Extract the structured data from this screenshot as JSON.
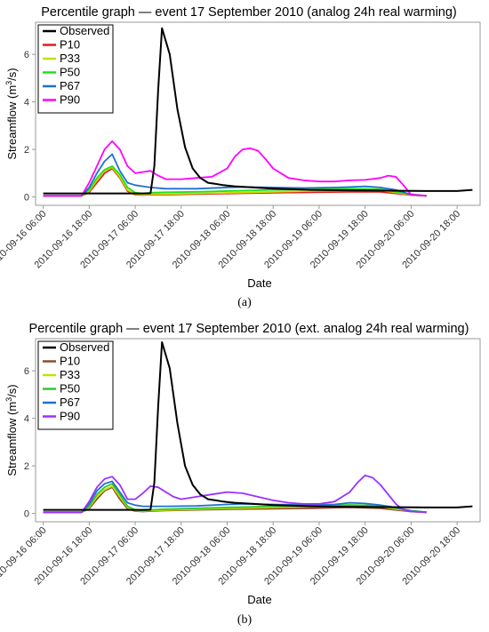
{
  "captions": [
    "(a)",
    "(b)"
  ],
  "chart_data": [
    {
      "type": "line",
      "title": "Percentile graph — event 17 September 2010 (analog 24h real warming)",
      "xlabel": "Date",
      "ylabel_main": "Streamflow (m",
      "ylabel_sup": "3",
      "ylabel_tail": "/s)",
      "x_tick_labels": [
        "2010-09-16 06:00",
        "2010-09-16 18:00",
        "2010-09-17 06:00",
        "2010-09-17 18:00",
        "2010-09-18 06:00",
        "2010-09-18 18:00",
        "2010-09-19 06:00",
        "2010-09-19 18:00",
        "2010-09-20 06:00",
        "2010-09-20 18:00"
      ],
      "x_range_hours": [
        -2,
        114
      ],
      "y_ticks": [
        0,
        2,
        4,
        6
      ],
      "ylim": [
        -0.35,
        7.35
      ],
      "grid": false,
      "legend_position": "top-left",
      "series": [
        {
          "name": "Observed",
          "color": "#000000",
          "x": [
            0,
            26,
            28,
            29,
            30,
            31,
            33,
            35,
            37,
            39,
            41,
            43,
            45,
            47,
            50,
            55,
            60,
            70,
            80,
            100,
            108,
            112
          ],
          "y": [
            0.15,
            0.15,
            0.16,
            1.3,
            4.5,
            7.1,
            6.0,
            3.7,
            2.1,
            1.2,
            0.8,
            0.6,
            0.55,
            0.5,
            0.45,
            0.4,
            0.35,
            0.3,
            0.28,
            0.25,
            0.25,
            0.3
          ]
        },
        {
          "name": "P10",
          "color": "#e41a1c",
          "x": [
            0,
            10,
            12,
            14,
            16,
            18,
            20,
            22,
            24,
            26,
            28,
            32,
            40,
            50,
            60,
            70,
            80,
            88,
            96,
            100
          ],
          "y": [
            0.05,
            0.05,
            0.2,
            0.6,
            1.0,
            1.2,
            0.8,
            0.25,
            0.1,
            0.08,
            0.1,
            0.1,
            0.12,
            0.15,
            0.18,
            0.2,
            0.22,
            0.22,
            0.08,
            0.05
          ]
        },
        {
          "name": "P33",
          "color": "#c8e000",
          "x": [
            0,
            10,
            12,
            14,
            16,
            18,
            20,
            22,
            24,
            26,
            28,
            32,
            40,
            50,
            60,
            70,
            80,
            88,
            96,
            100
          ],
          "y": [
            0.05,
            0.05,
            0.25,
            0.7,
            1.1,
            1.25,
            0.85,
            0.3,
            0.12,
            0.1,
            0.12,
            0.13,
            0.15,
            0.18,
            0.22,
            0.25,
            0.28,
            0.28,
            0.1,
            0.05
          ]
        },
        {
          "name": "P50",
          "color": "#1ee01e",
          "x": [
            0,
            10,
            12,
            14,
            16,
            18,
            20,
            22,
            24,
            26,
            28,
            32,
            40,
            50,
            60,
            70,
            80,
            88,
            96,
            100
          ],
          "y": [
            0.05,
            0.05,
            0.3,
            0.8,
            1.15,
            1.3,
            0.95,
            0.4,
            0.18,
            0.15,
            0.18,
            0.2,
            0.22,
            0.26,
            0.3,
            0.32,
            0.35,
            0.33,
            0.12,
            0.05
          ]
        },
        {
          "name": "P67",
          "color": "#1f6fd1",
          "x": [
            0,
            10,
            12,
            14,
            16,
            18,
            20,
            22,
            24,
            26,
            28,
            32,
            40,
            48,
            52,
            60,
            68,
            76,
            80,
            84,
            88,
            92,
            96,
            100
          ],
          "y": [
            0.05,
            0.05,
            0.4,
            1.0,
            1.5,
            1.8,
            1.1,
            0.6,
            0.5,
            0.45,
            0.4,
            0.35,
            0.35,
            0.4,
            0.42,
            0.4,
            0.38,
            0.4,
            0.42,
            0.45,
            0.4,
            0.3,
            0.1,
            0.05
          ]
        },
        {
          "name": "P90",
          "color": "#ff00ff",
          "x": [
            0,
            10,
            12,
            14,
            16,
            18,
            20,
            22,
            24,
            26,
            28,
            30,
            32,
            36,
            40,
            44,
            48,
            50,
            52,
            54,
            56,
            58,
            60,
            64,
            68,
            72,
            76,
            80,
            84,
            88,
            90,
            92,
            94,
            96,
            100
          ],
          "y": [
            0.05,
            0.05,
            0.6,
            1.3,
            2.0,
            2.35,
            2.0,
            1.3,
            1.0,
            1.05,
            1.1,
            0.9,
            0.75,
            0.75,
            0.8,
            0.85,
            1.2,
            1.7,
            2.0,
            2.05,
            1.95,
            1.6,
            1.2,
            0.8,
            0.7,
            0.65,
            0.65,
            0.7,
            0.72,
            0.8,
            0.9,
            0.85,
            0.5,
            0.1,
            0.05
          ]
        }
      ]
    },
    {
      "type": "line",
      "title": "Percentile graph — event 17 September 2010 (ext. analog 24h real warming)",
      "xlabel": "Date",
      "ylabel_main": "Streamflow (m",
      "ylabel_sup": "3",
      "ylabel_tail": "/s)",
      "x_tick_labels": [
        "2010-09-16 06:00",
        "2010-09-16 18:00",
        "2010-09-17 06:00",
        "2010-09-17 18:00",
        "2010-09-18 06:00",
        "2010-09-18 18:00",
        "2010-09-19 06:00",
        "2010-09-19 18:00",
        "2010-09-20 06:00",
        "2010-09-20 18:00"
      ],
      "x_range_hours": [
        -2,
        114
      ],
      "y_ticks": [
        0,
        2,
        4,
        6
      ],
      "ylim": [
        -0.35,
        7.35
      ],
      "grid": false,
      "legend_position": "top-left",
      "series": [
        {
          "name": "Observed",
          "color": "#000000",
          "x": [
            0,
            26,
            28,
            29,
            30,
            31,
            33,
            35,
            37,
            39,
            41,
            43,
            45,
            47,
            50,
            55,
            60,
            70,
            80,
            100,
            108,
            112
          ],
          "y": [
            0.15,
            0.15,
            0.16,
            1.3,
            4.5,
            7.2,
            6.1,
            3.8,
            2.0,
            1.2,
            0.8,
            0.6,
            0.55,
            0.5,
            0.45,
            0.4,
            0.35,
            0.3,
            0.28,
            0.25,
            0.25,
            0.3
          ]
        },
        {
          "name": "P10",
          "color": "#8c4a2f",
          "x": [
            0,
            10,
            12,
            14,
            16,
            18,
            20,
            22,
            24,
            26,
            28,
            32,
            40,
            50,
            60,
            70,
            80,
            88,
            96,
            100
          ],
          "y": [
            0.05,
            0.05,
            0.2,
            0.6,
            0.95,
            1.1,
            0.6,
            0.2,
            0.1,
            0.08,
            0.1,
            0.12,
            0.15,
            0.18,
            0.2,
            0.22,
            0.25,
            0.22,
            0.08,
            0.05
          ]
        },
        {
          "name": "P33",
          "color": "#c8e000",
          "x": [
            0,
            10,
            12,
            14,
            16,
            18,
            20,
            22,
            24,
            26,
            28,
            32,
            40,
            50,
            60,
            70,
            80,
            88,
            96,
            100
          ],
          "y": [
            0.05,
            0.05,
            0.25,
            0.7,
            1.0,
            1.15,
            0.7,
            0.25,
            0.12,
            0.1,
            0.12,
            0.14,
            0.18,
            0.22,
            0.25,
            0.28,
            0.3,
            0.28,
            0.1,
            0.05
          ]
        },
        {
          "name": "P50",
          "color": "#32c832",
          "x": [
            0,
            10,
            12,
            14,
            16,
            18,
            20,
            22,
            24,
            26,
            28,
            32,
            40,
            50,
            60,
            70,
            80,
            88,
            96,
            100
          ],
          "y": [
            0.05,
            0.05,
            0.3,
            0.8,
            1.1,
            1.25,
            0.8,
            0.3,
            0.15,
            0.12,
            0.15,
            0.18,
            0.22,
            0.26,
            0.3,
            0.32,
            0.36,
            0.33,
            0.12,
            0.05
          ]
        },
        {
          "name": "P67",
          "color": "#1f6fd1",
          "x": [
            0,
            10,
            12,
            14,
            16,
            18,
            20,
            22,
            24,
            26,
            28,
            32,
            40,
            48,
            52,
            60,
            68,
            76,
            80,
            84,
            88,
            92,
            96,
            100
          ],
          "y": [
            0.05,
            0.05,
            0.4,
            0.95,
            1.25,
            1.35,
            0.9,
            0.45,
            0.35,
            0.3,
            0.3,
            0.3,
            0.32,
            0.38,
            0.4,
            0.38,
            0.36,
            0.38,
            0.45,
            0.42,
            0.35,
            0.25,
            0.1,
            0.05
          ]
        },
        {
          "name": "P90",
          "color": "#9b30ff",
          "x": [
            0,
            10,
            12,
            14,
            16,
            18,
            20,
            22,
            24,
            26,
            28,
            30,
            32,
            34,
            36,
            40,
            44,
            48,
            52,
            56,
            60,
            64,
            68,
            72,
            76,
            80,
            82,
            84,
            86,
            88,
            90,
            92,
            94,
            96,
            100
          ],
          "y": [
            0.05,
            0.05,
            0.5,
            1.1,
            1.45,
            1.55,
            1.2,
            0.6,
            0.6,
            0.85,
            1.15,
            1.1,
            0.9,
            0.7,
            0.6,
            0.7,
            0.8,
            0.9,
            0.85,
            0.7,
            0.55,
            0.45,
            0.4,
            0.4,
            0.5,
            0.9,
            1.3,
            1.6,
            1.5,
            1.2,
            0.8,
            0.4,
            0.15,
            0.08,
            0.05
          ]
        }
      ]
    }
  ]
}
